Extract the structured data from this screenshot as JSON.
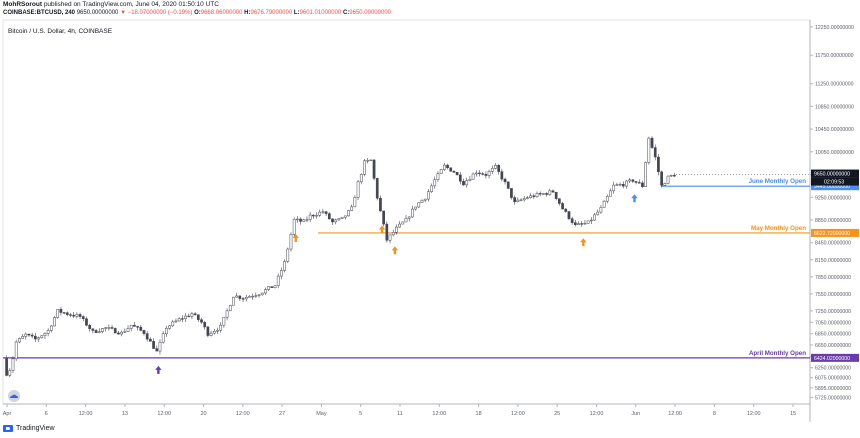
{
  "header": {
    "author": "MohRSorout",
    "published_text": "published on TradingView.com, June 04, 2020 01:50:10 UTC",
    "symbol_line": "COINBASE:BTCUSD, 240",
    "last_price": "9650.00000000",
    "change": "▼ −18.07000000 (−0.19%)",
    "ohlc": {
      "o_label": "O:",
      "o": "9668.06000000",
      "h_label": "H:",
      "h": "9676.79000000",
      "l_label": "L:",
      "l": "9601.01000000",
      "c_label": "C:",
      "c": "9650.00000000"
    }
  },
  "chart_title": "Bitcoin / U.S. Dollar, 4h, COINBASE",
  "colors": {
    "up": "#ffffff",
    "down": "#434651",
    "wick": "#434651",
    "june": "#4b8ef0",
    "may": "#f7931a",
    "april": "#6a3bab",
    "price_tag": "#131722",
    "axis_text": "#5d606b"
  },
  "footer": {
    "brand": "TradingView"
  },
  "chart_data": {
    "type": "candlestick",
    "title": "Bitcoin / U.S. Dollar, 4h, COINBASE",
    "y_axis": {
      "ylim": [
        5612,
        12370
      ],
      "ticks": [
        "12250.00000000",
        "11750.00000000",
        "11250.00000000",
        "10850.00000000",
        "10450.00000000",
        "10050.00000000",
        "9650.00000000",
        "9250.00000000",
        "8850.00000000",
        "8450.00000000",
        "8150.00000000",
        "7850.00000000",
        "7550.00000000",
        "7250.00000000",
        "7050.00000000",
        "6850.00000000",
        "6650.00000000",
        "6450.00000000",
        "6250.00000000",
        "6075.00000000",
        "5895.00000000",
        "5725.00000000"
      ]
    },
    "x_axis": {
      "ticks": [
        "Apr",
        "6",
        "12:00",
        "13",
        "12:00",
        "20",
        "12:00",
        "27",
        "May",
        "5",
        "11",
        "12:00",
        "18",
        "12:00",
        "25",
        "12:00",
        "Jun",
        "12:00",
        "8",
        "12:00",
        "15"
      ]
    },
    "levels": [
      {
        "label": "June Monthly Open",
        "value": 9445,
        "value_text": "9445.00000000",
        "color": "#4b8ef0"
      },
      {
        "label": "May Monthly Open",
        "value": 8622.72,
        "value_text": "8622.72000000",
        "color": "#f7931a"
      },
      {
        "label": "April Monthly Open",
        "value": 6424.02,
        "value_text": "6424.02000000",
        "color": "#6a3bab"
      }
    ],
    "current_price": {
      "value": 9650,
      "value_text": "9650.00000000",
      "countdown": "02:09:53"
    },
    "arrows": [
      {
        "label": "",
        "color": "#6a3bab",
        "t": 0.24
      },
      {
        "label": "",
        "color": "#f7931a",
        "t": 0.455
      },
      {
        "label": "",
        "color": "#f7931a",
        "t": 0.59
      },
      {
        "label": "",
        "color": "#f7931a",
        "t": 0.61
      },
      {
        "label": "",
        "color": "#f7931a",
        "t": 0.905
      },
      {
        "label": "",
        "color": "#4b8ef0",
        "t": 0.985
      }
    ],
    "price_path": {
      "note": "",
      "waypoints": [
        [
          0.0,
          6410
        ],
        [
          0.005,
          6150
        ],
        [
          0.012,
          6250
        ],
        [
          0.02,
          6700
        ],
        [
          0.035,
          6830
        ],
        [
          0.05,
          6750
        ],
        [
          0.07,
          6900
        ],
        [
          0.085,
          7250
        ],
        [
          0.1,
          7200
        ],
        [
          0.12,
          7150
        ],
        [
          0.14,
          6880
        ],
        [
          0.16,
          6950
        ],
        [
          0.185,
          6860
        ],
        [
          0.2,
          7000
        ],
        [
          0.22,
          6870
        ],
        [
          0.24,
          6530
        ],
        [
          0.255,
          6960
        ],
        [
          0.275,
          7100
        ],
        [
          0.295,
          7200
        ],
        [
          0.31,
          7050
        ],
        [
          0.32,
          6850
        ],
        [
          0.34,
          6970
        ],
        [
          0.36,
          7520
        ],
        [
          0.375,
          7480
        ],
        [
          0.4,
          7560
        ],
        [
          0.425,
          7700
        ],
        [
          0.44,
          8100
        ],
        [
          0.455,
          8850
        ],
        [
          0.47,
          8820
        ],
        [
          0.48,
          8920
        ],
        [
          0.5,
          9000
        ],
        [
          0.515,
          8810
        ],
        [
          0.53,
          8870
        ],
        [
          0.545,
          9050
        ],
        [
          0.555,
          9500
        ],
        [
          0.565,
          9860
        ],
        [
          0.575,
          9900
        ],
        [
          0.585,
          9250
        ],
        [
          0.6,
          8500
        ],
        [
          0.615,
          8700
        ],
        [
          0.63,
          8850
        ],
        [
          0.645,
          9100
        ],
        [
          0.66,
          9250
        ],
        [
          0.675,
          9550
        ],
        [
          0.69,
          9800
        ],
        [
          0.705,
          9700
        ],
        [
          0.72,
          9500
        ],
        [
          0.74,
          9700
        ],
        [
          0.755,
          9650
        ],
        [
          0.77,
          9780
        ],
        [
          0.785,
          9500
        ],
        [
          0.8,
          9150
        ],
        [
          0.82,
          9250
        ],
        [
          0.84,
          9300
        ],
        [
          0.86,
          9350
        ],
        [
          0.875,
          9050
        ],
        [
          0.895,
          8750
        ],
        [
          0.915,
          8800
        ],
        [
          0.935,
          9050
        ],
        [
          0.955,
          9450
        ],
        [
          0.97,
          9480
        ],
        [
          0.985,
          9550
        ],
        [
          1.0,
          9450
        ],
        [
          1.01,
          10300
        ],
        [
          1.02,
          9950
        ],
        [
          1.03,
          9450
        ],
        [
          1.04,
          9600
        ],
        [
          1.05,
          9650
        ]
      ]
    }
  }
}
